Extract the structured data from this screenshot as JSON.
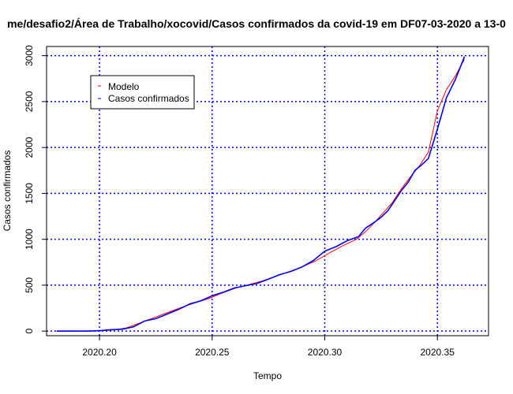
{
  "chart_data": {
    "type": "line",
    "title": "me/desafio2/Área de Trabalho/xocovid/Casos confirmados da covid-19 em DF07-03-2020 a 13-0",
    "xlabel": "Tempo",
    "ylabel": "Casos confirmados",
    "xlim": [
      2020.1765,
      2020.3727
    ],
    "ylim": [
      -50,
      3100
    ],
    "xticks": [
      2020.2,
      2020.25,
      2020.3,
      2020.35
    ],
    "xtick_labels": [
      "2020.20",
      "2020.25",
      "2020.30",
      "2020.35"
    ],
    "yticks": [
      0,
      500,
      1000,
      1500,
      2000,
      2500,
      3000
    ],
    "ytick_labels": [
      "0",
      "500",
      "1000",
      "1500",
      "2000",
      "2500",
      "3000"
    ],
    "grid": true,
    "grid_color": "#0000ff",
    "legend_position": "top-left",
    "series": [
      {
        "name": "Modelo",
        "color": "#ff0000",
        "x": [
          2020.181,
          2020.19,
          2020.2,
          2020.206,
          2020.212,
          2020.218,
          2020.224,
          2020.23,
          2020.236,
          2020.242,
          2020.248,
          2020.254,
          2020.26,
          2020.266,
          2020.272,
          2020.278,
          2020.284,
          2020.29,
          2020.296,
          2020.302,
          2020.308,
          2020.314,
          2020.318,
          2020.322,
          2020.326,
          2020.33,
          2020.334,
          2020.338,
          2020.342,
          2020.346,
          2020.35,
          2020.354,
          2020.358,
          2020.362
        ],
        "y": [
          0,
          0,
          3,
          12,
          35,
          90,
          145,
          200,
          255,
          305,
          350,
          410,
          465,
          505,
          545,
          595,
          645,
          700,
          765,
          850,
          930,
          1000,
          1080,
          1180,
          1290,
          1400,
          1550,
          1680,
          1800,
          1950,
          2400,
          2630,
          2780,
          2960
        ]
      },
      {
        "name": "Casos confirmados",
        "color": "#0000ff",
        "x": [
          2020.181,
          2020.19,
          2020.195,
          2020.2,
          2020.205,
          2020.21,
          2020.215,
          2020.22,
          2020.225,
          2020.23,
          2020.235,
          2020.24,
          2020.245,
          2020.25,
          2020.255,
          2020.26,
          2020.265,
          2020.27,
          2020.275,
          2020.28,
          2020.285,
          2020.29,
          2020.295,
          2020.3,
          2020.305,
          2020.31,
          2020.315,
          2020.318,
          2020.322,
          2020.325,
          2020.328,
          2020.331,
          2020.334,
          2020.337,
          2020.34,
          2020.343,
          2020.346,
          2020.35,
          2020.354,
          2020.358,
          2020.362
        ],
        "y": [
          0,
          0,
          0,
          5,
          15,
          20,
          45,
          110,
          135,
          185,
          235,
          295,
          330,
          385,
          425,
          470,
          495,
          520,
          565,
          615,
          650,
          700,
          770,
          870,
          920,
          985,
          1030,
          1120,
          1185,
          1240,
          1310,
          1420,
          1530,
          1620,
          1750,
          1810,
          1880,
          2200,
          2540,
          2740,
          2990
        ]
      }
    ]
  }
}
